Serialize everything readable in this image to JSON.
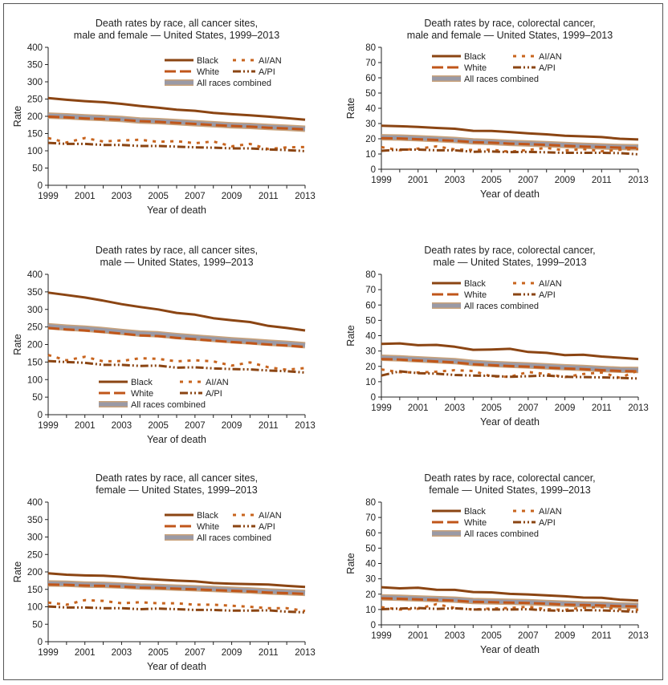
{
  "colors": {
    "black": "#8B4513",
    "white": "#C0561A",
    "aian": "#C8641E",
    "api": "#8B4513",
    "all_races": "#9a9aa6",
    "all_races_edge": "#c9a27a",
    "axis": "#222222"
  },
  "legend_labels": {
    "black": "Black",
    "white": "White",
    "aian": "AI/AN",
    "api": "A/PI",
    "all": "All races combined"
  },
  "chart_data": [
    {
      "type": "line",
      "title_line1": "Death rates by race, all cancer sites,",
      "title_line2": "male and female — United States, 1999–2013",
      "xlabel": "Year of death",
      "ylabel": "Rate",
      "ylim": [
        0,
        400
      ],
      "yticks": [
        "0",
        "50",
        "100",
        "150",
        "200",
        "250",
        "300",
        "350",
        "400"
      ],
      "xticks": [
        "1999",
        "2001",
        "2003",
        "2005",
        "2007",
        "2009",
        "2011",
        "2013"
      ],
      "x": [
        1999,
        2000,
        2001,
        2002,
        2003,
        2004,
        2005,
        2006,
        2007,
        2008,
        2009,
        2010,
        2011,
        2012,
        2013
      ],
      "legend_position": "top-right",
      "series": [
        {
          "name": "Black",
          "key": "black",
          "values": [
            253,
            248,
            244,
            241,
            236,
            230,
            225,
            219,
            216,
            210,
            206,
            203,
            199,
            195,
            190
          ]
        },
        {
          "name": "White",
          "key": "white",
          "values": [
            199,
            197,
            194,
            192,
            190,
            186,
            184,
            181,
            178,
            175,
            172,
            170,
            167,
            165,
            162
          ]
        },
        {
          "name": "All races combined",
          "key": "all",
          "values": [
            202,
            200,
            197,
            195,
            192,
            188,
            186,
            183,
            180,
            177,
            174,
            172,
            169,
            167,
            164
          ]
        },
        {
          "name": "AI/AN",
          "key": "aian",
          "values": [
            137,
            124,
            137,
            127,
            130,
            132,
            126,
            128,
            122,
            127,
            113,
            120,
            105,
            110,
            111
          ]
        },
        {
          "name": "A/PI",
          "key": "api",
          "values": [
            123,
            120,
            120,
            117,
            117,
            114,
            114,
            112,
            110,
            109,
            107,
            107,
            104,
            102,
            99
          ]
        }
      ]
    },
    {
      "type": "line",
      "title_line1": "Death rates by race, colorectal cancer,",
      "title_line2": "male and female — United States, 1999–2013",
      "xlabel": "Year of death",
      "ylabel": "Rate",
      "ylim": [
        0,
        80
      ],
      "yticks": [
        "0",
        "10",
        "20",
        "30",
        "40",
        "50",
        "60",
        "70",
        "80"
      ],
      "xticks": [
        "1999",
        "2001",
        "2003",
        "2005",
        "2007",
        "2009",
        "2011",
        "2013"
      ],
      "x": [
        1999,
        2000,
        2001,
        2002,
        2003,
        2004,
        2005,
        2006,
        2007,
        2008,
        2009,
        2010,
        2011,
        2012,
        2013
      ],
      "legend_position": "top-right",
      "series": [
        {
          "name": "Black",
          "key": "black",
          "values": [
            28.5,
            28.2,
            27.8,
            27.1,
            26.6,
            25.2,
            25.1,
            24.4,
            23.6,
            22.9,
            22.0,
            21.6,
            21.1,
            20.0,
            19.5
          ]
        },
        {
          "name": "White",
          "key": "white",
          "values": [
            20.4,
            20.2,
            19.7,
            19.2,
            18.7,
            17.8,
            17.4,
            16.8,
            16.4,
            16.0,
            15.4,
            14.9,
            14.5,
            14.2,
            14.0
          ]
        },
        {
          "name": "All races combined",
          "key": "all",
          "values": [
            21.0,
            20.8,
            20.3,
            19.8,
            19.2,
            18.3,
            17.9,
            17.3,
            16.9,
            16.5,
            15.9,
            15.4,
            15.0,
            14.6,
            14.4
          ]
        },
        {
          "name": "AI/AN",
          "key": "aian",
          "values": [
            14.5,
            12.5,
            13.5,
            15.0,
            13.0,
            12.6,
            12.8,
            11.5,
            12.7,
            14.0,
            12.3,
            13.2,
            11.8,
            12.8,
            13.3
          ]
        },
        {
          "name": "A/PI",
          "key": "api",
          "values": [
            12.1,
            12.9,
            12.9,
            12.4,
            12.4,
            11.5,
            11.7,
            11.2,
            11.4,
            11.1,
            10.8,
            10.8,
            10.8,
            10.6,
            9.8
          ]
        }
      ]
    },
    {
      "type": "line",
      "title_line1": "Death rates by race, all cancer sites,",
      "title_line2": "male — United States, 1999–2013",
      "xlabel": "Year of death",
      "ylabel": "Rate",
      "ylim": [
        0,
        400
      ],
      "yticks": [
        "0",
        "50",
        "100",
        "150",
        "200",
        "250",
        "300",
        "350",
        "400"
      ],
      "xticks": [
        "1999",
        "2001",
        "2003",
        "2005",
        "2007",
        "2009",
        "2011",
        "2013"
      ],
      "x": [
        1999,
        2000,
        2001,
        2002,
        2003,
        2004,
        2005,
        2006,
        2007,
        2008,
        2009,
        2010,
        2011,
        2012,
        2013
      ],
      "legend_position": "bottom-center",
      "series": [
        {
          "name": "Black",
          "key": "black",
          "values": [
            348,
            341,
            334,
            325,
            315,
            307,
            300,
            290,
            285,
            275,
            269,
            264,
            253,
            247,
            240
          ]
        },
        {
          "name": "White",
          "key": "white",
          "values": [
            247,
            243,
            240,
            236,
            231,
            226,
            224,
            219,
            215,
            211,
            207,
            204,
            200,
            197,
            193
          ]
        },
        {
          "name": "All races combined",
          "key": "all",
          "values": [
            252,
            248,
            245,
            241,
            236,
            231,
            229,
            224,
            220,
            216,
            212,
            209,
            205,
            202,
            198
          ]
        },
        {
          "name": "AI/AN",
          "key": "aian",
          "values": [
            170,
            155,
            165,
            152,
            153,
            161,
            159,
            152,
            155,
            152,
            140,
            149,
            135,
            128,
            133
          ]
        },
        {
          "name": "A/PI",
          "key": "api",
          "values": [
            153,
            150,
            148,
            142,
            142,
            139,
            140,
            134,
            135,
            132,
            130,
            129,
            126,
            124,
            120
          ]
        }
      ]
    },
    {
      "type": "line",
      "title_line1": "Death rates by race, colorectal cancer,",
      "title_line2": "male — United States, 1999–2013",
      "xlabel": "Year of death",
      "ylabel": "Rate",
      "ylim": [
        0,
        80
      ],
      "yticks": [
        "0",
        "10",
        "20",
        "30",
        "40",
        "50",
        "60",
        "70",
        "80"
      ],
      "xticks": [
        "1999",
        "2001",
        "2003",
        "2005",
        "2007",
        "2009",
        "2011",
        "2013"
      ],
      "x": [
        1999,
        2000,
        2001,
        2002,
        2003,
        2004,
        2005,
        2006,
        2007,
        2008,
        2009,
        2010,
        2011,
        2012,
        2013
      ],
      "legend_position": "top-right",
      "series": [
        {
          "name": "Black",
          "key": "black",
          "values": [
            34.6,
            35.0,
            33.8,
            34.0,
            32.8,
            30.8,
            31.0,
            31.4,
            29.4,
            28.8,
            27.3,
            27.6,
            26.4,
            25.6,
            24.8
          ]
        },
        {
          "name": "White",
          "key": "white",
          "values": [
            24.8,
            24.4,
            23.8,
            23.2,
            22.6,
            21.4,
            20.8,
            20.2,
            19.8,
            19.2,
            18.6,
            18.2,
            17.5,
            17.0,
            16.8
          ]
        },
        {
          "name": "All races combined",
          "key": "all",
          "values": [
            25.6,
            25.2,
            24.6,
            24.0,
            23.4,
            22.2,
            21.6,
            21.0,
            20.6,
            20.0,
            19.4,
            19.0,
            18.3,
            17.8,
            17.6
          ]
        },
        {
          "name": "AI/AN",
          "key": "aian",
          "values": [
            18.0,
            16.2,
            16.0,
            16.5,
            17.5,
            17.0,
            13.5,
            13.2,
            16.3,
            15.0,
            13.0,
            15.0,
            16.0,
            12.5,
            17.3
          ]
        },
        {
          "name": "A/PI",
          "key": "api",
          "values": [
            14.0,
            16.8,
            15.6,
            15.2,
            14.4,
            14.0,
            13.8,
            13.2,
            13.6,
            14.0,
            13.2,
            13.0,
            12.8,
            12.5,
            12.1
          ]
        }
      ]
    },
    {
      "type": "line",
      "title_line1": "Death rates by race, all cancer sites,",
      "title_line2": "female — United States, 1999–2013",
      "xlabel": "Year of death",
      "ylabel": "Rate",
      "ylim": [
        0,
        400
      ],
      "yticks": [
        "0",
        "50",
        "100",
        "150",
        "200",
        "250",
        "300",
        "350",
        "400"
      ],
      "xticks": [
        "1999",
        "2001",
        "2003",
        "2005",
        "2007",
        "2009",
        "2011",
        "2013"
      ],
      "x": [
        1999,
        2000,
        2001,
        2002,
        2003,
        2004,
        2005,
        2006,
        2007,
        2008,
        2009,
        2010,
        2011,
        2012,
        2013
      ],
      "legend_position": "top-right",
      "series": [
        {
          "name": "Black",
          "key": "black",
          "values": [
            196,
            192,
            190,
            189,
            186,
            181,
            178,
            175,
            173,
            168,
            166,
            165,
            164,
            160,
            157
          ]
        },
        {
          "name": "White",
          "key": "white",
          "values": [
            164,
            163,
            161,
            160,
            158,
            155,
            154,
            152,
            150,
            148,
            146,
            144,
            141,
            139,
            137
          ]
        },
        {
          "name": "All races combined",
          "key": "all",
          "values": [
            167,
            166,
            164,
            163,
            161,
            158,
            157,
            155,
            153,
            151,
            149,
            147,
            144,
            142,
            140
          ]
        },
        {
          "name": "AI/AN",
          "key": "aian",
          "values": [
            112,
            106,
            119,
            117,
            110,
            113,
            110,
            110,
            106,
            106,
            103,
            100,
            96,
            96,
            88
          ]
        },
        {
          "name": "A/PI",
          "key": "api",
          "values": [
            101,
            98,
            98,
            96,
            96,
            93,
            95,
            93,
            91,
            91,
            89,
            89,
            90,
            86,
            84
          ]
        }
      ]
    },
    {
      "type": "line",
      "title_line1": "Death rates by race, colorectal cancer,",
      "title_line2": "female — United States, 1999–2013",
      "xlabel": "Year of death",
      "ylabel": "Rate",
      "ylim": [
        0,
        80
      ],
      "yticks": [
        "0",
        "10",
        "20",
        "30",
        "40",
        "50",
        "60",
        "70",
        "80"
      ],
      "xticks": [
        "1999",
        "2001",
        "2003",
        "2005",
        "2007",
        "2009",
        "2011",
        "2013"
      ],
      "x": [
        1999,
        2000,
        2001,
        2002,
        2003,
        2004,
        2005,
        2006,
        2007,
        2008,
        2009,
        2010,
        2011,
        2012,
        2013
      ],
      "legend_position": "top-right",
      "series": [
        {
          "name": "Black",
          "key": "black",
          "values": [
            24.5,
            23.8,
            24.2,
            22.9,
            22.8,
            21.4,
            21.2,
            20.2,
            19.8,
            19.2,
            18.6,
            17.8,
            17.6,
            16.4,
            15.8
          ]
        },
        {
          "name": "White",
          "key": "white",
          "values": [
            17.3,
            17.0,
            16.6,
            16.2,
            15.8,
            15.0,
            14.8,
            14.5,
            14.3,
            13.8,
            13.2,
            12.9,
            12.6,
            12.2,
            12.0
          ]
        },
        {
          "name": "All races combined",
          "key": "all",
          "values": [
            17.9,
            17.6,
            17.2,
            16.8,
            16.4,
            15.6,
            15.3,
            15.0,
            14.8,
            14.3,
            13.8,
            13.4,
            13.1,
            12.7,
            12.5
          ]
        },
        {
          "name": "AI/AN",
          "key": "aian",
          "values": [
            11.5,
            10.0,
            10.5,
            13.5,
            11.0,
            10.0,
            10.6,
            11.0,
            11.8,
            10.2,
            9.8,
            11.2,
            11.6,
            10.0,
            9.8
          ]
        },
        {
          "name": "A/PI",
          "key": "api",
          "values": [
            10.2,
            10.6,
            11.0,
            10.4,
            10.8,
            10.0,
            10.0,
            10.0,
            10.2,
            9.4,
            9.1,
            9.6,
            9.4,
            9.0,
            8.4
          ]
        }
      ]
    }
  ]
}
